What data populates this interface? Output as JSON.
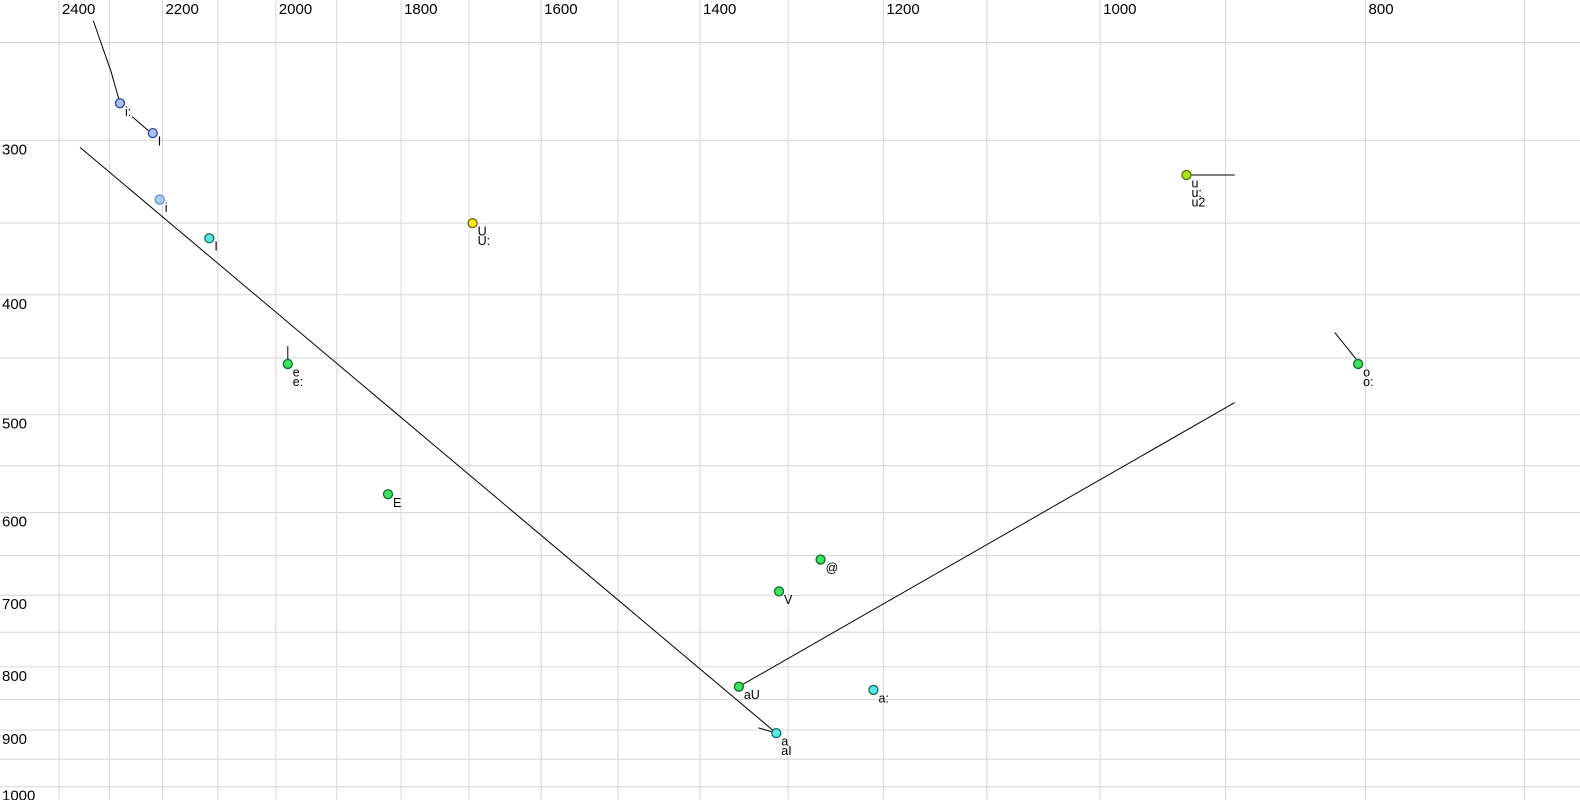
{
  "window": {
    "background": "#ffffff"
  },
  "chart_data": {
    "type": "scatter",
    "title": "",
    "description": "Vowel formant plot: F2 (Hz) on horizontal log axis (reversed), F1 (Hz) on vertical log axis (downward)",
    "x_axis": {
      "tick_labels": [
        2400,
        2200,
        2000,
        1800,
        1600,
        1400,
        1200,
        1000,
        800
      ],
      "minor_grid_step": 100,
      "grid_min": 700,
      "grid_max": 2400,
      "domain": [
        2522,
        668
      ],
      "scale": "log",
      "direction": "reversed"
    },
    "y_axis": {
      "tick_labels": [
        300,
        400,
        500,
        600,
        700,
        800,
        900,
        1000
      ],
      "minor_grid_step": 50,
      "grid_min": 250,
      "grid_max": 1000,
      "domain": [
        231,
        1025
      ],
      "scale": "log",
      "direction": "down"
    },
    "grid_color": "#d6d6d6",
    "line_color": "#000000",
    "palette": {
      "blue": {
        "fill": "#a9bfee",
        "stroke": "#27479b"
      },
      "lightblue": {
        "fill": "#aed0f5",
        "stroke": "#5d8fd1"
      },
      "cyan": {
        "fill": "#57e8e0",
        "stroke": "#0d6e66"
      },
      "green": {
        "fill": "#3fe066",
        "stroke": "#0a6e22"
      },
      "yellow": {
        "fill": "#ffe81a",
        "stroke": "#6e6400"
      },
      "yellowgreen": {
        "fill": "#abe61c",
        "stroke": "#4f7000"
      }
    },
    "point_radius": 4.5,
    "points": [
      {
        "label_lines": [
          "i:"
        ],
        "f2": 2280,
        "f1": 280,
        "color": "blue"
      },
      {
        "label_lines": [
          "I"
        ],
        "f2": 2218,
        "f1": 296,
        "color": "blue"
      },
      {
        "label_lines": [
          "i"
        ],
        "f2": 2205,
        "f1": 335,
        "color": "lightblue"
      },
      {
        "label_lines": [
          "I"
        ],
        "f2": 2115,
        "f1": 360,
        "color": "cyan"
      },
      {
        "label_lines": [
          "U",
          "U:"
        ],
        "f2": 1695,
        "f1": 350,
        "color": "yellow"
      },
      {
        "label_lines": [
          "u",
          "u:",
          "u2"
        ],
        "f2": 930,
        "f1": 320,
        "color": "yellowgreen"
      },
      {
        "label_lines": [
          "e",
          "e:"
        ],
        "f2": 1980,
        "f1": 455,
        "color": "green"
      },
      {
        "label_lines": [
          "E"
        ],
        "f2": 1820,
        "f1": 580,
        "color": "green"
      },
      {
        "label_lines": [
          "@"
        ],
        "f2": 1265,
        "f1": 655,
        "color": "green"
      },
      {
        "label_lines": [
          "V"
        ],
        "f2": 1310,
        "f1": 695,
        "color": "green"
      },
      {
        "label_lines": [
          "aU"
        ],
        "f2": 1355,
        "f1": 830,
        "color": "green"
      },
      {
        "label_lines": [
          "a",
          "aI"
        ],
        "f2": 1313,
        "f1": 905,
        "color": "cyan"
      },
      {
        "label_lines": [
          "a:"
        ],
        "f2": 1210,
        "f1": 835,
        "color": "cyan"
      },
      {
        "label_lines": [
          "o",
          "o:"
        ],
        "f2": 805,
        "f1": 455,
        "color": "green"
      }
    ],
    "lines": [
      {
        "name": "into-i-long",
        "pts": [
          [
            2332,
            240
          ],
          [
            2297,
            264
          ],
          [
            2280,
            280
          ]
        ]
      },
      {
        "name": "i-long-to-I",
        "pts": [
          [
            2257,
            287
          ],
          [
            2225,
            295
          ]
        ]
      },
      {
        "name": "front-diagonal",
        "pts": [
          [
            2358,
            304
          ],
          [
            1313,
            905
          ]
        ]
      },
      {
        "name": "back-diagonal",
        "pts": [
          [
            1355,
            830
          ],
          [
            893,
            489
          ]
        ]
      },
      {
        "name": "u2-horizontal",
        "pts": [
          [
            930,
            320
          ],
          [
            893,
            320
          ]
        ]
      },
      {
        "name": "e-vertical",
        "pts": [
          [
            1980,
            440
          ],
          [
            1980,
            455
          ]
        ]
      },
      {
        "name": "into-o",
        "pts": [
          [
            821,
            429
          ],
          [
            805,
            453
          ]
        ]
      },
      {
        "name": "into-a",
        "pts": [
          [
            1333,
            896
          ],
          [
            1313,
            905
          ]
        ]
      }
    ]
  }
}
